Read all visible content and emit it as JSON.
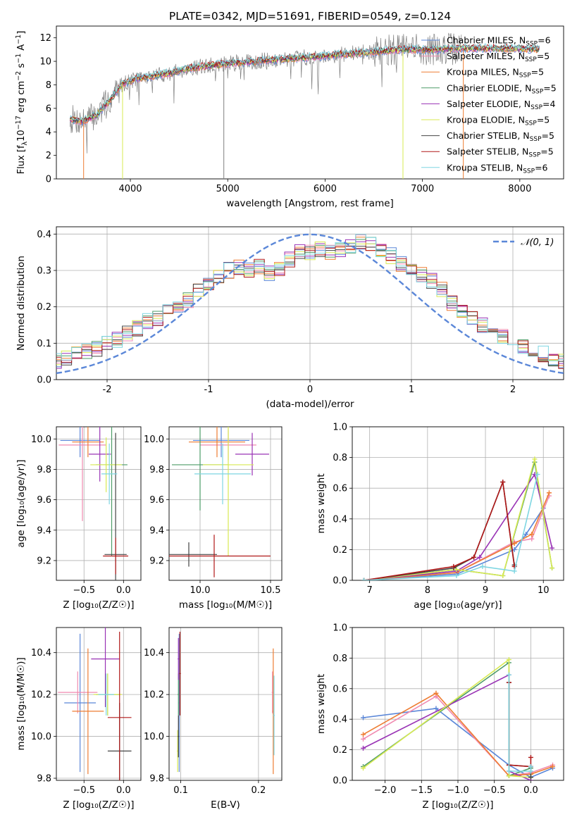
{
  "figure": {
    "title": "PLATE=0342, MJD=51691, FIBERID=0549, z=0.124"
  },
  "palette": {
    "Chabrier MILES": "#5b87d8",
    "Salpeter MILES": "#f08ab0",
    "Kroupa MILES": "#ee7d33",
    "Chabrier ELODIE": "#4e9c68",
    "Salpeter ELODIE": "#9933b5",
    "Kroupa ELODIE": "#d8ea52",
    "Chabrier STELIB": "#444444",
    "Salpeter STELIB": "#b01818",
    "Kroupa STELIB": "#7ed6e2",
    "data": "#808080",
    "normal": "#5b87d8"
  },
  "chart_data": [
    {
      "id": "spectrum",
      "type": "line",
      "title": "PLATE=0342, MJD=51691, FIBERID=0549, z=0.124",
      "xlabel": "wavelength [Angstrom, rest frame]",
      "ylabel": "Flux [f",
      "ylabel_sub": "λ",
      "ylabel_rest": "10",
      "ylabel_exp1": "−17",
      "ylabel_rest2": " erg cm",
      "ylabel_exp2": "−2",
      "ylabel_rest3": " s",
      "ylabel_exp3": "−1",
      "ylabel_rest4": " A",
      "ylabel_exp4": "−1",
      "ylabel_end": "]",
      "xlim": [
        3240,
        8450
      ],
      "ylim": [
        0,
        13
      ],
      "xticks": [
        4000,
        5000,
        6000,
        7000,
        8000
      ],
      "yticks": [
        0,
        2,
        4,
        6,
        8,
        10,
        12
      ],
      "grid": false,
      "legend": "right",
      "legend_entries": [
        {
          "pre": "Chabrier MILES, N",
          "sub": "SSP",
          "post": "=6"
        },
        {
          "pre": "Salpeter MILES, N",
          "sub": "SSP",
          "post": "=5"
        },
        {
          "pre": "Kroupa MILES, N",
          "sub": "SSP",
          "post": "=5"
        },
        {
          "pre": "Chabrier ELODIE, N",
          "sub": "SSP",
          "post": "=5"
        },
        {
          "pre": "Salpeter ELODIE, N",
          "sub": "SSP",
          "post": "=4"
        },
        {
          "pre": "Kroupa ELODIE, N",
          "sub": "SSP",
          "post": "=5"
        },
        {
          "pre": "Chabrier STELIB, N",
          "sub": "SSP",
          "post": "=5"
        },
        {
          "pre": "Salpeter STELIB, N",
          "sub": "SSP",
          "post": "=5"
        },
        {
          "pre": "Kroupa STELIB, N",
          "sub": "SSP",
          "post": "=6"
        }
      ],
      "continuum": {
        "x": [
          3380,
          3500,
          3650,
          3800,
          3920,
          4050,
          4200,
          4400,
          4600,
          4800,
          5000,
          5300,
          5600,
          5900,
          6200,
          6500,
          6800,
          7100,
          7400,
          7700,
          8000,
          8200
        ],
        "y": [
          5.1,
          4.9,
          5.4,
          6.8,
          8.1,
          8.5,
          8.7,
          9.0,
          9.4,
          9.6,
          9.8,
          10.0,
          10.2,
          10.4,
          10.6,
          10.8,
          11.0,
          11.0,
          11.1,
          11.1,
          11.1,
          11.0
        ]
      },
      "data_x_range": [
        3380,
        7400
      ],
      "model_x_range": [
        3380,
        8200
      ],
      "drops": [
        {
          "x": 3520,
          "to": 0,
          "series": "Kroupa MILES"
        },
        {
          "x": 3920,
          "to": 0,
          "series": "Kroupa ELODIE"
        },
        {
          "x": 4960,
          "to": 0,
          "series": "data"
        },
        {
          "x": 6800,
          "to": 0,
          "series": "Kroupa ELODIE"
        },
        {
          "x": 7420,
          "to": 0,
          "series": "Kroupa MILES"
        }
      ]
    },
    {
      "id": "residuals",
      "type": "step",
      "xlabel": "(data-model)/error",
      "ylabel": "Normed distribution",
      "xlim": [
        -2.5,
        2.5
      ],
      "ylim": [
        0,
        0.42
      ],
      "xticks": [
        -2,
        -1,
        0,
        1,
        2
      ],
      "yticks": [
        0.0,
        0.1,
        0.2,
        0.3,
        0.4
      ],
      "grid": true,
      "legend": "top-right",
      "legend_label": "𝒩(0, 1)",
      "bin_width": 0.1,
      "base_hist": [
        0.046,
        0.045,
        0.05,
        0.06,
        0.07,
        0.08,
        0.085,
        0.1,
        0.11,
        0.125,
        0.14,
        0.16,
        0.17,
        0.19,
        0.2,
        0.22,
        0.25,
        0.26,
        0.28,
        0.3,
        0.31,
        0.3,
        0.31,
        0.29,
        0.3,
        0.33,
        0.35,
        0.35,
        0.36,
        0.35,
        0.36,
        0.37,
        0.38,
        0.37,
        0.35,
        0.34,
        0.32,
        0.31,
        0.29,
        0.27,
        0.25,
        0.21,
        0.19,
        0.17,
        0.15,
        0.13,
        0.12,
        0.1,
        0.09,
        0.07,
        0.07,
        0.06,
        0.05,
        0.05,
        0.04
      ]
    },
    {
      "id": "age_vs_Z",
      "type": "errorbar",
      "xlabel": "Z [log₁₀(Z/Z☉)]",
      "ylabel": "age  [log₁₀(age/yr)]",
      "xlim": [
        -0.85,
        0.22
      ],
      "ylim": [
        9.07,
        10.08
      ],
      "xticks": [
        -0.5,
        0.0
      ],
      "xticklabels": [
        "−0.5",
        "0.0"
      ],
      "yticks": [
        9.2,
        9.4,
        9.6,
        9.8,
        10.0
      ],
      "grid": true,
      "points": [
        {
          "series": "Chabrier MILES",
          "x": -0.55,
          "xerr": 0.25,
          "y": 9.99,
          "yerr": 0.11
        },
        {
          "series": "Salpeter MILES",
          "x": -0.52,
          "xerr": 0.3,
          "y": 9.96,
          "yerr": 0.5
        },
        {
          "series": "Kroupa MILES",
          "x": -0.45,
          "xerr": 0.2,
          "y": 9.98,
          "yerr": 0.1
        },
        {
          "series": "Chabrier ELODIE",
          "x": -0.15,
          "xerr": 0.2,
          "y": 9.83,
          "yerr": 0.6
        },
        {
          "series": "Salpeter ELODIE",
          "x": -0.3,
          "xerr": 0.14,
          "y": 9.9,
          "yerr": 0.18
        },
        {
          "series": "Kroupa ELODIE",
          "x": -0.22,
          "xerr": 0.2,
          "y": 9.83,
          "yerr": 0.18
        },
        {
          "series": "Chabrier STELIB",
          "x": -0.1,
          "xerr": 0.14,
          "y": 9.24,
          "yerr": 0.8
        },
        {
          "series": "Salpeter STELIB",
          "x": -0.1,
          "xerr": 0.16,
          "y": 9.23,
          "yerr": 0.12
        },
        {
          "series": "Kroupa STELIB",
          "x": -0.18,
          "xerr": 0.1,
          "y": 9.77,
          "yerr": 0.2
        }
      ]
    },
    {
      "id": "age_vs_mass",
      "type": "errorbar",
      "xlabel": "mass [log₁₀(M/M☉)]",
      "ylabel": "",
      "xlim": [
        9.78,
        10.58
      ],
      "ylim": [
        9.07,
        10.08
      ],
      "xticks": [
        10.0,
        10.5
      ],
      "xticklabels": [
        "10.0",
        "10.5"
      ],
      "yticks": [
        9.2,
        9.4,
        9.6,
        9.8,
        10.0
      ],
      "grid": true,
      "points": [
        {
          "series": "Chabrier MILES",
          "x": 10.15,
          "xerr": 0.2,
          "y": 9.99,
          "yerr": 0.11
        },
        {
          "series": "Salpeter MILES",
          "x": 10.2,
          "xerr": 0.2,
          "y": 9.96,
          "yerr": 0.1
        },
        {
          "series": "Kroupa MILES",
          "x": 10.12,
          "xerr": 0.2,
          "y": 9.98,
          "yerr": 0.1
        },
        {
          "series": "Chabrier ELODIE",
          "x": 10.0,
          "xerr": 0.2,
          "y": 9.83,
          "yerr": 0.3
        },
        {
          "series": "Salpeter ELODIE",
          "x": 10.37,
          "xerr": 0.12,
          "y": 9.9,
          "yerr": 0.14
        },
        {
          "series": "Kroupa ELODIE",
          "x": 10.2,
          "xerr": 0.18,
          "y": 9.83,
          "yerr": 0.6
        },
        {
          "series": "Chabrier STELIB",
          "x": 9.92,
          "xerr": 0.2,
          "y": 9.24,
          "yerr": 0.08
        },
        {
          "series": "Salpeter STELIB",
          "x": 10.1,
          "xerr": 0.4,
          "y": 9.23,
          "yerr": 0.14
        },
        {
          "series": "Kroupa STELIB",
          "x": 10.16,
          "xerr": 0.2,
          "y": 9.77,
          "yerr": 0.2
        }
      ]
    },
    {
      "id": "weight_vs_age",
      "type": "line",
      "xlabel": "age  [log₁₀(age/yr)]",
      "ylabel": "mass weight",
      "xlim": [
        6.7,
        10.35
      ],
      "ylim": [
        0,
        1.0
      ],
      "xticks": [
        7,
        8,
        9,
        10
      ],
      "yticks": [
        0.0,
        0.2,
        0.4,
        0.6,
        0.8,
        1.0
      ],
      "grid": true,
      "series": [
        {
          "name": "Chabrier MILES",
          "x": [
            6.9,
            8.5,
            9.5,
            9.7,
            10.0
          ],
          "y": [
            0.0,
            0.04,
            0.2,
            0.3,
            0.47
          ]
        },
        {
          "name": "Salpeter MILES",
          "x": [
            6.9,
            8.5,
            9.5,
            9.8,
            10.1
          ],
          "y": [
            0.0,
            0.05,
            0.25,
            0.27,
            0.55
          ]
        },
        {
          "name": "Kroupa MILES",
          "x": [
            6.9,
            8.5,
            9.5,
            9.8,
            10.1
          ],
          "y": [
            0.0,
            0.05,
            0.24,
            0.3,
            0.57
          ]
        },
        {
          "name": "Chabrier ELODIE",
          "x": [
            6.9,
            8.5,
            9.3,
            9.85,
            10.15
          ],
          "y": [
            0.0,
            0.07,
            0.03,
            0.77,
            0.08
          ]
        },
        {
          "name": "Salpeter ELODIE",
          "x": [
            6.9,
            8.5,
            8.9,
            9.85,
            10.15
          ],
          "y": [
            0.0,
            0.06,
            0.15,
            0.69,
            0.21
          ]
        },
        {
          "name": "Kroupa ELODIE",
          "x": [
            6.9,
            8.5,
            9.3,
            9.85,
            10.15
          ],
          "y": [
            0.0,
            0.07,
            0.03,
            0.79,
            0.08
          ]
        },
        {
          "name": "Chabrier STELIB",
          "x": [
            6.9,
            8.45,
            8.8,
            9.3,
            9.5
          ],
          "y": [
            0.0,
            0.08,
            0.15,
            0.64,
            0.1
          ]
        },
        {
          "name": "Salpeter STELIB",
          "x": [
            6.9,
            8.45,
            8.8,
            9.3,
            9.5
          ],
          "y": [
            0.0,
            0.09,
            0.15,
            0.64,
            0.09
          ]
        },
        {
          "name": "Kroupa STELIB",
          "x": [
            6.9,
            8.5,
            8.95,
            9.5,
            9.9
          ],
          "y": [
            0.0,
            0.03,
            0.09,
            0.06,
            0.69
          ]
        }
      ]
    },
    {
      "id": "mass_vs_Z",
      "type": "errorbar",
      "xlabel": "Z [log₁₀(Z/Z☉)]",
      "ylabel": "mass [log₁₀(M/M☉)]",
      "xlim": [
        -0.85,
        0.22
      ],
      "ylim": [
        9.79,
        10.52
      ],
      "xticks": [
        -0.5,
        0.0
      ],
      "xticklabels": [
        "−0.5",
        "0.0"
      ],
      "yticks": [
        9.8,
        10.0,
        10.2,
        10.4
      ],
      "grid": true,
      "points": [
        {
          "series": "Chabrier MILES",
          "x": -0.55,
          "xerr": 0.2,
          "y": 10.16,
          "yerr": 0.33
        },
        {
          "series": "Salpeter MILES",
          "x": -0.58,
          "xerr": 0.25,
          "y": 10.21,
          "yerr": 0.1
        },
        {
          "series": "Kroupa MILES",
          "x": -0.45,
          "xerr": 0.2,
          "y": 10.12,
          "yerr": 0.3
        },
        {
          "series": "Chabrier ELODIE",
          "x": -0.2,
          "xerr": 0.15,
          "y": 10.2,
          "yerr": 0.1
        },
        {
          "series": "Salpeter ELODIE",
          "x": -0.23,
          "xerr": 0.18,
          "y": 10.37,
          "yerr": 0.23
        },
        {
          "series": "Kroupa ELODIE",
          "x": -0.2,
          "xerr": 0.18,
          "y": 10.2,
          "yerr": 0.1
        },
        {
          "series": "Chabrier STELIB",
          "x": -0.05,
          "xerr": 0.15,
          "y": 9.93,
          "yerr": 0.23
        },
        {
          "series": "Salpeter STELIB",
          "x": -0.05,
          "xerr": 0.15,
          "y": 10.09,
          "yerr": 0.41
        },
        {
          "series": "Kroupa STELIB",
          "x": -0.22,
          "xerr": 0.1,
          "y": 10.2,
          "yerr": 0.1
        }
      ]
    },
    {
      "id": "mass_vs_EBV",
      "type": "errorbar",
      "xlabel": "E(B-V)",
      "ylabel": "",
      "xlim": [
        0.085,
        0.23
      ],
      "ylim": [
        9.79,
        10.52
      ],
      "xticks": [
        0.1,
        0.2
      ],
      "xticklabels": [
        "0.1",
        "0.2"
      ],
      "yticks": [
        9.8,
        10.0,
        10.2,
        10.4
      ],
      "grid": true,
      "points": [
        {
          "series": "Chabrier MILES",
          "x": 0.098,
          "xerr": 0.001,
          "y": 10.16,
          "yerr": 0.33
        },
        {
          "series": "Salpeter MILES",
          "x": 0.218,
          "xerr": 0.001,
          "y": 10.21,
          "yerr": 0.1
        },
        {
          "series": "Kroupa MILES",
          "x": 0.219,
          "xerr": 0.001,
          "y": 10.12,
          "yerr": 0.3
        },
        {
          "series": "Chabrier ELODIE",
          "x": 0.097,
          "xerr": 0.001,
          "y": 10.2,
          "yerr": 0.1
        },
        {
          "series": "Salpeter ELODIE",
          "x": 0.097,
          "xerr": 0.001,
          "y": 10.37,
          "yerr": 0.1
        },
        {
          "series": "Kroupa ELODIE",
          "x": 0.096,
          "xerr": 0.001,
          "y": 9.93,
          "yerr": 0.1
        },
        {
          "series": "Chabrier STELIB",
          "x": 0.097,
          "xerr": 0.001,
          "y": 10.0,
          "yerr": 0.1
        },
        {
          "series": "Salpeter STELIB",
          "x": 0.099,
          "xerr": 0.001,
          "y": 10.3,
          "yerr": 0.2
        },
        {
          "series": "Kroupa STELIB",
          "x": 0.22,
          "xerr": 0.001,
          "y": 10.1,
          "yerr": 0.19
        }
      ]
    },
    {
      "id": "weight_vs_Z",
      "type": "line",
      "xlabel": "Z [log₁₀(Z/Z☉)]",
      "ylabel": "mass weight",
      "xlim": [
        -2.45,
        0.45
      ],
      "ylim": [
        0,
        1.0
      ],
      "xticks": [
        -2.0,
        -1.5,
        -1.0,
        -0.5,
        0.0
      ],
      "xticklabels": [
        "−2.0",
        "−1.5",
        "−1.0",
        "−0.5",
        "0.0"
      ],
      "yticks": [
        0.0,
        0.2,
        0.4,
        0.6,
        0.8,
        1.0
      ],
      "grid": true,
      "series": [
        {
          "name": "Chabrier MILES",
          "x": [
            -2.3,
            -1.3,
            -0.3,
            0.0,
            0.3
          ],
          "y": [
            0.41,
            0.47,
            0.1,
            0.02,
            0.08
          ]
        },
        {
          "name": "Salpeter MILES",
          "x": [
            -2.3,
            -1.3,
            -0.3,
            0.0,
            0.3
          ],
          "y": [
            0.27,
            0.55,
            0.03,
            0.05,
            0.1
          ]
        },
        {
          "name": "Kroupa MILES",
          "x": [
            -2.3,
            -1.3,
            -0.3,
            0.0,
            0.3
          ],
          "y": [
            0.3,
            0.57,
            0.03,
            0.04,
            0.09
          ]
        },
        {
          "name": "Chabrier ELODIE",
          "x": [
            -2.3,
            -0.3,
            -0.3,
            0.0
          ],
          "y": [
            0.09,
            0.77,
            0.03,
            0.08
          ]
        },
        {
          "name": "Salpeter ELODIE",
          "x": [
            -2.3,
            -0.3,
            -0.3,
            0.0
          ],
          "y": [
            0.21,
            0.69,
            0.06,
            0.0
          ]
        },
        {
          "name": "Kroupa ELODIE",
          "x": [
            -2.3,
            -0.3,
            -0.3,
            0.0
          ],
          "y": [
            0.08,
            0.79,
            0.03,
            0.02
          ]
        },
        {
          "name": "Chabrier STELIB",
          "x": [
            -0.3,
            -0.3,
            0.0,
            0.0
          ],
          "y": [
            0.64,
            0.1,
            0.09,
            0.02
          ]
        },
        {
          "name": "Salpeter STELIB",
          "x": [
            -0.3,
            -0.3,
            0.0,
            0.0
          ],
          "y": [
            0.64,
            0.1,
            0.09,
            0.15
          ]
        },
        {
          "name": "Kroupa STELIB",
          "x": [
            -0.3,
            -0.3,
            0.0,
            0.0
          ],
          "y": [
            0.69,
            0.06,
            0.06,
            0.09
          ]
        }
      ]
    }
  ]
}
